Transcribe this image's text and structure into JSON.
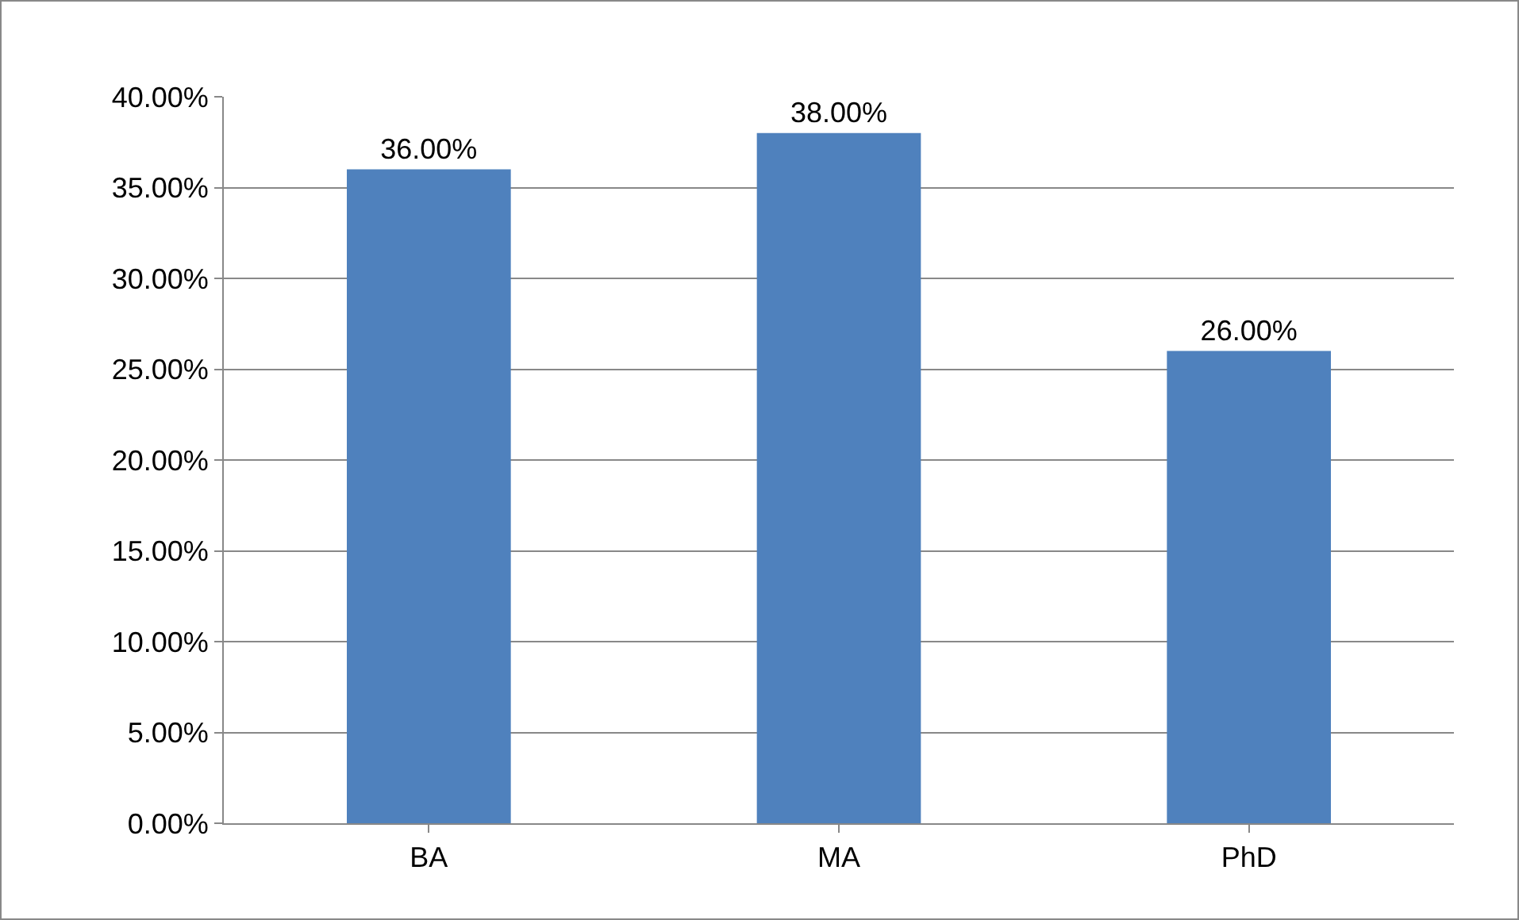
{
  "chart_data": {
    "type": "bar",
    "categories": [
      "BA",
      "MA",
      "PhD"
    ],
    "values": [
      36,
      38,
      26
    ],
    "value_labels": [
      "36.00%",
      "38.00%",
      "26.00%"
    ],
    "color": "#4f81bd",
    "ylim": [
      0,
      40
    ],
    "yticks": [
      {
        "value": 0,
        "label": "0.00%"
      },
      {
        "value": 5,
        "label": "5.00%"
      },
      {
        "value": 10,
        "label": "10.00%"
      },
      {
        "value": 15,
        "label": "15.00%"
      },
      {
        "value": 20,
        "label": "20.00%"
      },
      {
        "value": 25,
        "label": "25.00%"
      },
      {
        "value": 30,
        "label": "30.00%"
      },
      {
        "value": 35,
        "label": "35.00%"
      },
      {
        "value": 40,
        "label": "40.00%"
      }
    ],
    "grid": "y",
    "legend": false
  }
}
